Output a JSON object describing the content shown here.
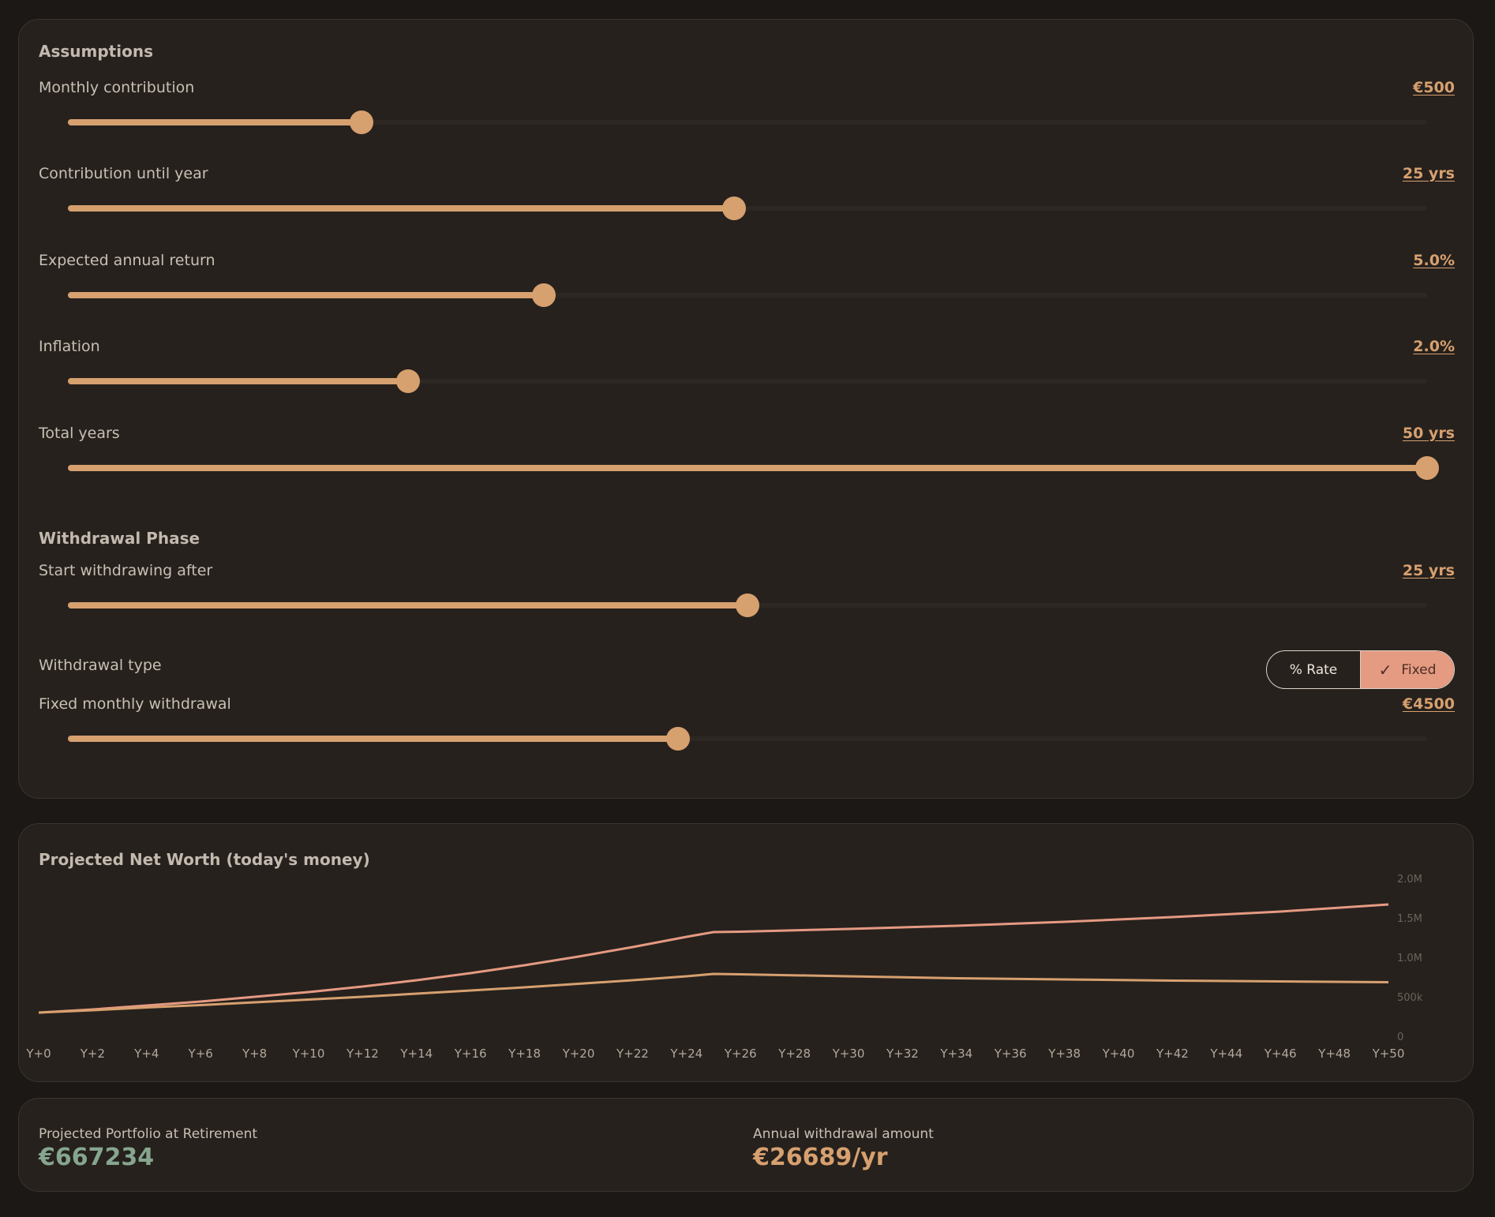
{
  "assumptions": {
    "title": "Assumptions",
    "sliders": [
      {
        "label": "Monthly contribution",
        "value_text": "€500",
        "fraction": 0.216
      },
      {
        "label": "Contribution until year",
        "value_text": "25 yrs",
        "fraction": 0.49
      },
      {
        "label": "Expected annual return",
        "value_text": "5.0%",
        "fraction": 0.35
      },
      {
        "label": "Inflation",
        "value_text": "2.0%",
        "fraction": 0.25
      },
      {
        "label": "Total years",
        "value_text": "50 yrs",
        "fraction": 1.0
      }
    ]
  },
  "withdrawal": {
    "title": "Withdrawal Phase",
    "start_after": {
      "label": "Start withdrawing after",
      "value_text": "25 yrs",
      "fraction": 0.5
    },
    "type": {
      "label": "Withdrawal type",
      "options": [
        "% Rate",
        "Fixed"
      ],
      "selected": "Fixed"
    },
    "fixed_monthly": {
      "label": "Fixed monthly withdrawal",
      "value_text": "€4500",
      "fraction": 0.449
    }
  },
  "chart_data": {
    "type": "line",
    "title": "Projected Net Worth (today's money)",
    "x_tick_labels": [
      "Y+0",
      "Y+2",
      "Y+4",
      "Y+6",
      "Y+8",
      "Y+10",
      "Y+12",
      "Y+14",
      "Y+16",
      "Y+18",
      "Y+20",
      "Y+22",
      "Y+24",
      "Y+26",
      "Y+28",
      "Y+30",
      "Y+32",
      "Y+34",
      "Y+36",
      "Y+38",
      "Y+40",
      "Y+42",
      "Y+44",
      "Y+46",
      "Y+48",
      "Y+50"
    ],
    "y_tick_labels": [
      "0",
      "500k",
      "1.0M",
      "1.5M",
      "2.0M"
    ],
    "y_ticks": [
      0,
      500000,
      1000000,
      1500000,
      2000000
    ],
    "ylim": [
      0,
      2000000
    ],
    "xlim": [
      0,
      50
    ],
    "series": [
      {
        "color": "#e59a82",
        "x": [
          0,
          2,
          4,
          6,
          8,
          10,
          12,
          14,
          16,
          18,
          20,
          22,
          24,
          25,
          26,
          30,
          34,
          38,
          42,
          46,
          50
        ],
        "y": [
          310000,
          350000,
          400000,
          450000,
          510000,
          570000,
          640000,
          720000,
          810000,
          910000,
          1020000,
          1140000,
          1270000,
          1330000,
          1335000,
          1370000,
          1410000,
          1460000,
          1520000,
          1590000,
          1680000
        ]
      },
      {
        "color": "#d7a06f",
        "x": [
          0,
          2,
          4,
          6,
          8,
          10,
          12,
          14,
          16,
          18,
          20,
          22,
          24,
          25,
          26,
          30,
          34,
          38,
          42,
          46,
          50
        ],
        "y": [
          310000,
          340000,
          375000,
          405000,
          440000,
          475000,
          510000,
          550000,
          590000,
          630000,
          675000,
          720000,
          770000,
          800000,
          795000,
          770000,
          745000,
          730000,
          715000,
          705000,
          695000
        ]
      }
    ],
    "grid": false
  },
  "summary": {
    "portfolio_label": "Projected Portfolio at Retirement",
    "portfolio_value": "€667234",
    "withdrawal_label": "Annual withdrawal amount",
    "withdrawal_value": "€26689/yr"
  }
}
